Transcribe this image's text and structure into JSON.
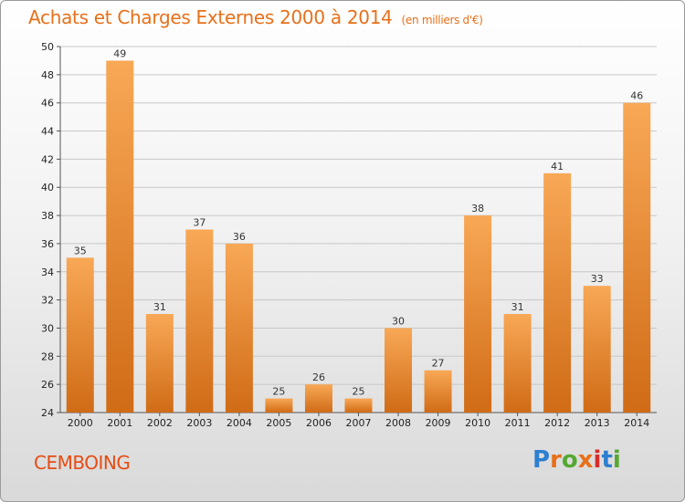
{
  "chart_data": {
    "type": "bar",
    "title": "Achats et Charges Externes 2000 à 2014",
    "subtitle": "(en milliers d'€)",
    "categories": [
      "2000",
      "2001",
      "2002",
      "2003",
      "2004",
      "2005",
      "2006",
      "2007",
      "2008",
      "2009",
      "2010",
      "2011",
      "2012",
      "2013",
      "2014"
    ],
    "values": [
      35,
      49,
      31,
      37,
      36,
      25,
      26,
      25,
      30,
      27,
      38,
      31,
      41,
      33,
      46
    ],
    "ylim": [
      24,
      50
    ],
    "yticks": [
      24,
      26,
      28,
      30,
      32,
      34,
      36,
      38,
      40,
      42,
      44,
      46,
      48,
      50
    ],
    "grid": true,
    "bar_color_light": "#f8a856",
    "bar_color_dark": "#d06b16"
  },
  "footer": {
    "city": "CEMBOING",
    "logo": "Proxiti",
    "logo_colors": [
      "#2e7fd1",
      "#e8701a",
      "#56a832",
      "#e8701a",
      "#d62c2c",
      "#2e7fd1",
      "#56a832"
    ]
  }
}
